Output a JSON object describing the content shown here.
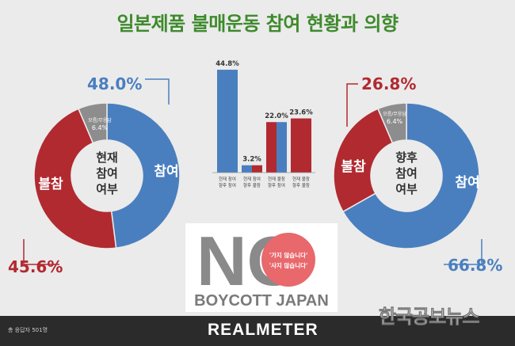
{
  "title": "일본제품 불매운동 참여 현황과 의향",
  "footer": {
    "note": "총 응답자 501명",
    "brand": "REALMETER",
    "watermark": "한국공보뉴스"
  },
  "boycott_graphic": {
    "letter": "NO",
    "circle_text_1": "'가지 않습니다'",
    "circle_text_2": "'사지 않습니다'",
    "caption": "BOYCOTT JAPAN"
  },
  "colors": {
    "blue": "#4a7fbf",
    "red": "#b12a30",
    "gray": "#8d8d8d",
    "title_green": "#3e8a2c",
    "pink": "#e8686c"
  },
  "chart_data": [
    {
      "type": "pie",
      "center_label": "현재\n참여\n여부",
      "slices": [
        {
          "label": "참여",
          "value": 48.0,
          "value_label": "48.0%",
          "color": "#4a7fbf"
        },
        {
          "label": "불참",
          "value": 45.6,
          "value_label": "45.6%",
          "color": "#b12a30"
        },
        {
          "label": "모름/무응답",
          "value": 6.4,
          "value_label": "6.4%",
          "color": "#8d8d8d"
        }
      ]
    },
    {
      "type": "bar",
      "categories": [
        "현재 참여 향후 참여",
        "현재 참여 향후 불참",
        "현재 불참 향후 참여",
        "현재 불참 향후 불참"
      ],
      "values": [
        44.8,
        3.2,
        22.0,
        23.6
      ],
      "value_labels": [
        "44.8%",
        "3.2%",
        "22.0%",
        "23.6%"
      ],
      "bar_colors": [
        [
          "#4a7fbf",
          "#4a7fbf"
        ],
        [
          "#4a7fbf",
          "#b12a30"
        ],
        [
          "#b12a30",
          "#4a7fbf"
        ],
        [
          "#b12a30",
          "#b12a30"
        ]
      ],
      "ylim": [
        0,
        50
      ]
    },
    {
      "type": "pie",
      "center_label": "향후\n참여\n여부",
      "slices": [
        {
          "label": "참여",
          "value": 66.8,
          "value_label": "66.8%",
          "color": "#4a7fbf"
        },
        {
          "label": "불참",
          "value": 26.8,
          "value_label": "26.8%",
          "color": "#b12a30"
        },
        {
          "label": "모름/무응답",
          "value": 6.4,
          "value_label": "6.4%",
          "color": "#8d8d8d"
        }
      ]
    }
  ]
}
